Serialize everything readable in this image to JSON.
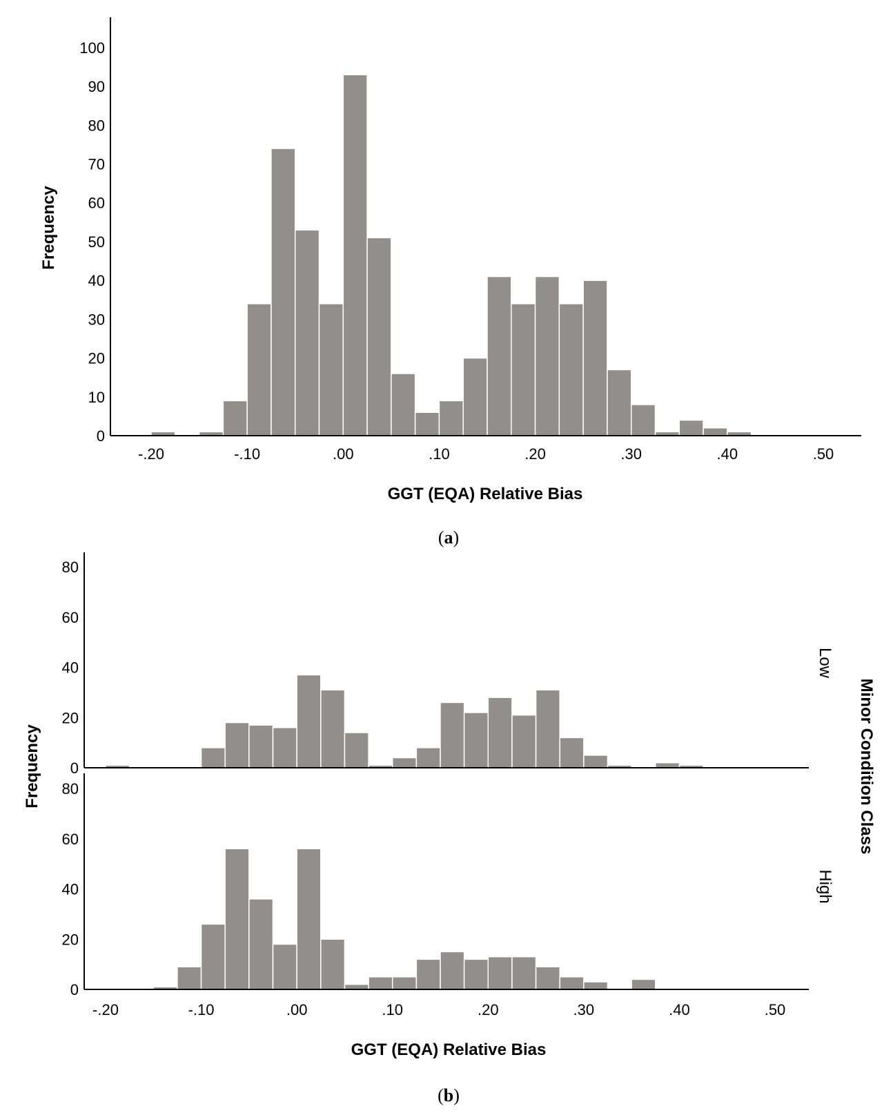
{
  "chart_data": [
    {
      "type": "bar",
      "subtype": "histogram",
      "caption_letter": "a",
      "xlabel": "GGT (EQA) Relative Bias",
      "ylabel": "Frequency",
      "x_tick_labels": [
        "-.20",
        "-.10",
        ".00",
        ".10",
        ".20",
        ".30",
        ".40",
        ".50"
      ],
      "x_ticks": [
        -0.2,
        -0.1,
        0.0,
        0.1,
        0.2,
        0.3,
        0.4,
        0.5
      ],
      "y_tick_labels": [
        "0",
        "10",
        "20",
        "30",
        "40",
        "50",
        "60",
        "70",
        "80",
        "90",
        "100"
      ],
      "y_ticks": [
        0,
        10,
        20,
        30,
        40,
        50,
        60,
        70,
        80,
        90,
        100
      ],
      "xlim": [
        -0.24,
        0.54
      ],
      "ylim": [
        0,
        105
      ],
      "bin_width": 0.025,
      "bins": [
        {
          "center": -0.1875,
          "value": 1
        },
        {
          "center": -0.1375,
          "value": 1
        },
        {
          "center": -0.1125,
          "value": 9
        },
        {
          "center": -0.0875,
          "value": 34
        },
        {
          "center": -0.0625,
          "value": 74
        },
        {
          "center": -0.0375,
          "value": 53
        },
        {
          "center": -0.0125,
          "value": 34
        },
        {
          "center": 0.0125,
          "value": 93
        },
        {
          "center": 0.0375,
          "value": 51
        },
        {
          "center": 0.0625,
          "value": 16
        },
        {
          "center": 0.0875,
          "value": 6
        },
        {
          "center": 0.1125,
          "value": 9
        },
        {
          "center": 0.1375,
          "value": 20
        },
        {
          "center": 0.1625,
          "value": 41
        },
        {
          "center": 0.1875,
          "value": 34
        },
        {
          "center": 0.2125,
          "value": 41
        },
        {
          "center": 0.2375,
          "value": 34
        },
        {
          "center": 0.2625,
          "value": 40
        },
        {
          "center": 0.2875,
          "value": 17
        },
        {
          "center": 0.3125,
          "value": 8
        },
        {
          "center": 0.3375,
          "value": 1
        },
        {
          "center": 0.3625,
          "value": 4
        },
        {
          "center": 0.3875,
          "value": 2
        },
        {
          "center": 0.4125,
          "value": 1
        }
      ]
    },
    {
      "type": "bar",
      "subtype": "histogram-faceted",
      "caption_letter": "b",
      "xlabel": "GGT (EQA) Relative Bias",
      "ylabel": "Frequency",
      "facet_title": "Minor Condition Class",
      "x_tick_labels": [
        "-.20",
        "-.10",
        ".00",
        ".10",
        ".20",
        ".30",
        ".40",
        ".50"
      ],
      "x_ticks": [
        -0.2,
        -0.1,
        0.0,
        0.1,
        0.2,
        0.3,
        0.4,
        0.5
      ],
      "y_tick_labels": [
        "0",
        "20",
        "40",
        "60",
        "80"
      ],
      "y_ticks": [
        0,
        20,
        40,
        60,
        80
      ],
      "xlim": [
        -0.24,
        0.54
      ],
      "ylim": [
        0,
        85
      ],
      "bin_width": 0.025,
      "panels": [
        {
          "name": "Low",
          "bins": [
            {
              "center": -0.1875,
              "value": 1
            },
            {
              "center": -0.0875,
              "value": 8
            },
            {
              "center": -0.0625,
              "value": 18
            },
            {
              "center": -0.0375,
              "value": 17
            },
            {
              "center": -0.0125,
              "value": 16
            },
            {
              "center": 0.0125,
              "value": 37
            },
            {
              "center": 0.0375,
              "value": 31
            },
            {
              "center": 0.0625,
              "value": 14
            },
            {
              "center": 0.0875,
              "value": 1
            },
            {
              "center": 0.1125,
              "value": 4
            },
            {
              "center": 0.1375,
              "value": 8
            },
            {
              "center": 0.1625,
              "value": 26
            },
            {
              "center": 0.1875,
              "value": 22
            },
            {
              "center": 0.2125,
              "value": 28
            },
            {
              "center": 0.2375,
              "value": 21
            },
            {
              "center": 0.2625,
              "value": 31
            },
            {
              "center": 0.2875,
              "value": 12
            },
            {
              "center": 0.3125,
              "value": 5
            },
            {
              "center": 0.3375,
              "value": 1
            },
            {
              "center": 0.3875,
              "value": 2
            },
            {
              "center": 0.4125,
              "value": 1
            }
          ]
        },
        {
          "name": "High",
          "bins": [
            {
              "center": -0.1375,
              "value": 1
            },
            {
              "center": -0.1125,
              "value": 9
            },
            {
              "center": -0.0875,
              "value": 26
            },
            {
              "center": -0.0625,
              "value": 56
            },
            {
              "center": -0.0375,
              "value": 36
            },
            {
              "center": -0.0125,
              "value": 18
            },
            {
              "center": 0.0125,
              "value": 56
            },
            {
              "center": 0.0375,
              "value": 20
            },
            {
              "center": 0.0625,
              "value": 2
            },
            {
              "center": 0.0875,
              "value": 5
            },
            {
              "center": 0.1125,
              "value": 5
            },
            {
              "center": 0.1375,
              "value": 12
            },
            {
              "center": 0.1625,
              "value": 15
            },
            {
              "center": 0.1875,
              "value": 12
            },
            {
              "center": 0.2125,
              "value": 13
            },
            {
              "center": 0.2375,
              "value": 13
            },
            {
              "center": 0.2625,
              "value": 9
            },
            {
              "center": 0.2875,
              "value": 5
            },
            {
              "center": 0.3125,
              "value": 3
            },
            {
              "center": 0.3625,
              "value": 4
            }
          ]
        }
      ]
    }
  ],
  "colors": {
    "bar_fill": "#928e8c",
    "bar_edge": "#ffffff",
    "axis": "#000000"
  }
}
